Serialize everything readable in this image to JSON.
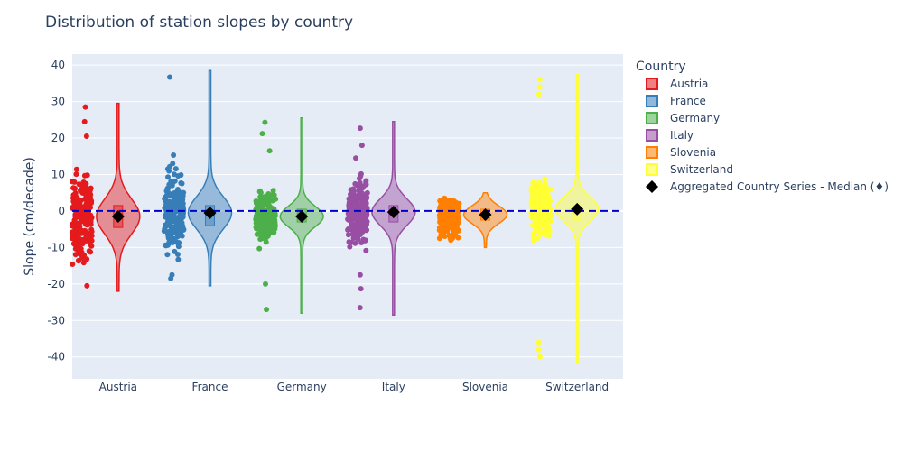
{
  "chart_data": {
    "type": "violin",
    "title": "Distribution of station slopes by country",
    "xlabel": "",
    "ylabel": "Slope (cm/decade)",
    "ylim": [
      -46,
      43
    ],
    "yticks": [
      -40,
      -30,
      -20,
      -10,
      0,
      10,
      20,
      30,
      40
    ],
    "categories": [
      "Austria",
      "France",
      "Germany",
      "Italy",
      "Slovenia",
      "Switzerland"
    ],
    "reference_line": {
      "y": 0,
      "color": "#0000cc",
      "style": "dashed"
    },
    "legend": {
      "title": "Country",
      "placement": "right",
      "items": [
        "Austria",
        "France",
        "Germany",
        "Italy",
        "Slovenia",
        "Switzerland",
        "Aggregated Country Series - Median (♦)"
      ]
    },
    "series": [
      {
        "name": "Austria",
        "color": "#e41a1c",
        "min": -22,
        "max": 29.5,
        "q1": -4.5,
        "median": -1.5,
        "q3": 1.5,
        "marker_median": -1.5,
        "outlier_points": [
          28.5,
          24.5,
          20.5,
          -20.5
        ]
      },
      {
        "name": "France",
        "color": "#377eb8",
        "min": -20.5,
        "max": 38.5,
        "q1": -4,
        "median": -0.5,
        "q3": 1.5,
        "marker_median": -0.5,
        "outlier_points": [
          36.7,
          15.3,
          13,
          -18.5,
          -17.5
        ]
      },
      {
        "name": "Germany",
        "color": "#4daf4a",
        "min": -28,
        "max": 25.5,
        "q1": -3,
        "median": -1.5,
        "q3": 0.5,
        "marker_median": -1.5,
        "outlier_points": [
          24.3,
          21.2,
          16.5,
          -20,
          -27
        ]
      },
      {
        "name": "Italy",
        "color": "#984ea3",
        "min": -28.5,
        "max": 24.5,
        "q1": -3,
        "median": -0.3,
        "q3": 1.5,
        "marker_median": -0.3,
        "outlier_points": [
          22.7,
          18,
          14.5,
          -17.5,
          -21.3,
          -26.5
        ]
      },
      {
        "name": "Slovenia",
        "color": "#ff7f00",
        "min": -10,
        "max": 5,
        "q1": -2.5,
        "median": -1,
        "q3": 0.5,
        "marker_median": -1,
        "outlier_points": [
          3.5,
          -8
        ]
      },
      {
        "name": "Switzerland",
        "color": "#ffff33",
        "min": -41.5,
        "max": 37.5,
        "q1": -2.5,
        "median": 0.5,
        "q3": 1.5,
        "marker_median": 0.5,
        "outlier_points": [
          36,
          34,
          32,
          -36,
          -38,
          -40
        ]
      }
    ]
  }
}
